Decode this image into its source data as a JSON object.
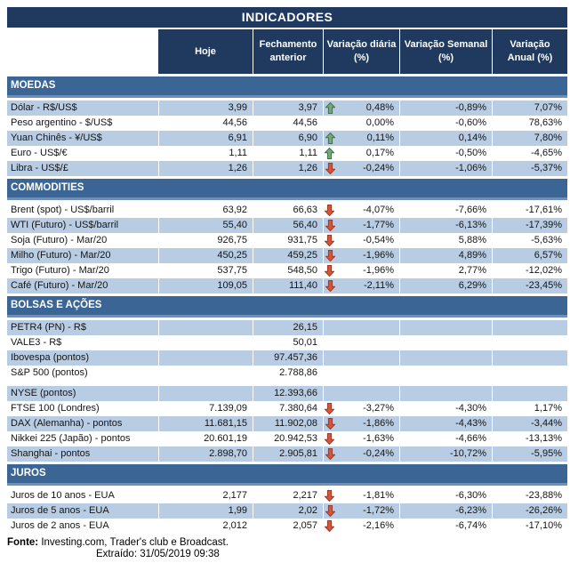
{
  "title": "INDICADORES",
  "columns": [
    "Hoje",
    "Fechamento anterior",
    "Variação diária (%)",
    "Variação Semanal (%)",
    "Variação Anual (%)"
  ],
  "sections": [
    {
      "name": "MOEDAS",
      "rows": [
        {
          "label": "Dólar - R$/US$",
          "hoje": "3,99",
          "fechamento": "3,97",
          "arrow": "up",
          "var_diaria": "0,48%",
          "var_semanal": "-0,89%",
          "var_anual": "7,07%",
          "shaded": true,
          "gap_before": false
        },
        {
          "label": "Peso argentino - $/US$",
          "hoje": "44,56",
          "fechamento": "44,56",
          "arrow": "",
          "var_diaria": "0,00%",
          "var_semanal": "-0,60%",
          "var_anual": "78,63%",
          "shaded": false,
          "gap_before": false
        },
        {
          "label": "Yuan Chinês - ¥/US$",
          "hoje": "6,91",
          "fechamento": "6,90",
          "arrow": "up",
          "var_diaria": "0,11%",
          "var_semanal": "0,14%",
          "var_anual": "7,80%",
          "shaded": true,
          "gap_before": false
        },
        {
          "label": "Euro - US$/€",
          "hoje": "1,11",
          "fechamento": "1,11",
          "arrow": "up",
          "var_diaria": "0,17%",
          "var_semanal": "-0,50%",
          "var_anual": "-4,65%",
          "shaded": false,
          "gap_before": false
        },
        {
          "label": "Libra - US$/£",
          "hoje": "1,26",
          "fechamento": "1,26",
          "arrow": "down",
          "var_diaria": "-0,24%",
          "var_semanal": "-1,06%",
          "var_anual": "-5,37%",
          "shaded": true,
          "gap_before": false
        }
      ]
    },
    {
      "name": "COMMODITIES",
      "rows": [
        {
          "label": "Brent (spot) - US$/barril",
          "hoje": "63,92",
          "fechamento": "66,63",
          "arrow": "down",
          "var_diaria": "-4,07%",
          "var_semanal": "-7,66%",
          "var_anual": "-17,61%",
          "shaded": false,
          "gap_before": false
        },
        {
          "label": "WTI (Futuro) - US$/barril",
          "hoje": "55,40",
          "fechamento": "56,40",
          "arrow": "down",
          "var_diaria": "-1,77%",
          "var_semanal": "-6,13%",
          "var_anual": "-17,39%",
          "shaded": true,
          "gap_before": false
        },
        {
          "label": "Soja (Futuro) - Mar/20",
          "hoje": "926,75",
          "fechamento": "931,75",
          "arrow": "down",
          "var_diaria": "-0,54%",
          "var_semanal": "5,88%",
          "var_anual": "-5,63%",
          "shaded": false,
          "gap_before": false
        },
        {
          "label": "Milho (Futuro) - Mar/20",
          "hoje": "450,25",
          "fechamento": "459,25",
          "arrow": "down",
          "var_diaria": "-1,96%",
          "var_semanal": "4,89%",
          "var_anual": "6,57%",
          "shaded": true,
          "gap_before": false
        },
        {
          "label": "Trigo (Futuro) - Mar/20",
          "hoje": "537,75",
          "fechamento": "548,50",
          "arrow": "down",
          "var_diaria": "-1,96%",
          "var_semanal": "2,77%",
          "var_anual": "-12,02%",
          "shaded": false,
          "gap_before": false
        },
        {
          "label": "Café (Futuro) - Mar/20",
          "hoje": "109,05",
          "fechamento": "111,40",
          "arrow": "down",
          "var_diaria": "-2,11%",
          "var_semanal": "6,29%",
          "var_anual": "-23,45%",
          "shaded": true,
          "gap_before": false
        }
      ]
    },
    {
      "name": "BOLSAS E AÇÕES",
      "rows": [
        {
          "label": "PETR4 (PN) - R$",
          "hoje": "",
          "fechamento": "26,15",
          "arrow": "",
          "var_diaria": "",
          "var_semanal": "",
          "var_anual": "",
          "shaded": true,
          "gap_before": false
        },
        {
          "label": "VALE3 - R$",
          "hoje": "",
          "fechamento": "50,01",
          "arrow": "",
          "var_diaria": "",
          "var_semanal": "",
          "var_anual": "",
          "shaded": false,
          "gap_before": false
        },
        {
          "label": "Ibovespa (pontos)",
          "hoje": "",
          "fechamento": "97.457,36",
          "arrow": "",
          "var_diaria": "",
          "var_semanal": "",
          "var_anual": "",
          "shaded": true,
          "gap_before": false
        },
        {
          "label": "S&P 500 (pontos)",
          "hoje": "",
          "fechamento": "2.788,86",
          "arrow": "",
          "var_diaria": "",
          "var_semanal": "",
          "var_anual": "",
          "shaded": false,
          "gap_before": false
        },
        {
          "label": "NYSE (pontos)",
          "hoje": "",
          "fechamento": "12.393,66",
          "arrow": "",
          "var_diaria": "",
          "var_semanal": "",
          "var_anual": "",
          "shaded": true,
          "gap_before": true
        },
        {
          "label": "FTSE 100 (Londres)",
          "hoje": "7.139,09",
          "fechamento": "7.380,64",
          "arrow": "down",
          "var_diaria": "-3,27%",
          "var_semanal": "-4,30%",
          "var_anual": "1,17%",
          "shaded": false,
          "gap_before": false
        },
        {
          "label": "DAX (Alemanha) - pontos",
          "hoje": "11.681,15",
          "fechamento": "11.902,08",
          "arrow": "down",
          "var_diaria": "-1,86%",
          "var_semanal": "-4,43%",
          "var_anual": "-3,44%",
          "shaded": true,
          "gap_before": false
        },
        {
          "label": "Nikkei 225 (Japão) - pontos",
          "hoje": "20.601,19",
          "fechamento": "20.942,53",
          "arrow": "down",
          "var_diaria": "-1,63%",
          "var_semanal": "-4,66%",
          "var_anual": "-13,13%",
          "shaded": false,
          "gap_before": false
        },
        {
          "label": "Shanghai - pontos",
          "hoje": "2.898,70",
          "fechamento": "2.905,81",
          "arrow": "down",
          "var_diaria": "-0,24%",
          "var_semanal": "-10,72%",
          "var_anual": "-5,95%",
          "shaded": true,
          "gap_before": false
        }
      ]
    },
    {
      "name": "JUROS",
      "rows": [
        {
          "label": "Juros de 10 anos - EUA",
          "hoje": "2,177",
          "fechamento": "2,217",
          "arrow": "down",
          "var_diaria": "-1,81%",
          "var_semanal": "-6,30%",
          "var_anual": "-23,88%",
          "shaded": false,
          "gap_before": false
        },
        {
          "label": "Juros de 5 anos - EUA",
          "hoje": "1,99",
          "fechamento": "2,02",
          "arrow": "down",
          "var_diaria": "-1,72%",
          "var_semanal": "-6,23%",
          "var_anual": "-26,26%",
          "shaded": true,
          "gap_before": false
        },
        {
          "label": "Juros de 2 anos - EUA",
          "hoje": "2,012",
          "fechamento": "2,057",
          "arrow": "down",
          "var_diaria": "-2,16%",
          "var_semanal": "-6,74%",
          "var_anual": "-17,10%",
          "shaded": false,
          "gap_before": false
        }
      ]
    }
  ],
  "footer": {
    "fonte_label": "Fonte:",
    "fonte_text": " Investing.com, Trader's club e Broadcast.",
    "extraido": "Extraído: 31/05/2019 09:38"
  },
  "colors": {
    "title_bar": "#1F3A5E",
    "section_bar": "#3A6594",
    "section_bar_accent": "#6E90B8",
    "row_shaded": "#B8CCE4",
    "arrow_up": "#76A878",
    "arrow_up_stroke": "#41704D",
    "arrow_down": "#D4553B",
    "arrow_down_stroke": "#9E3A26",
    "text": "#141414"
  }
}
